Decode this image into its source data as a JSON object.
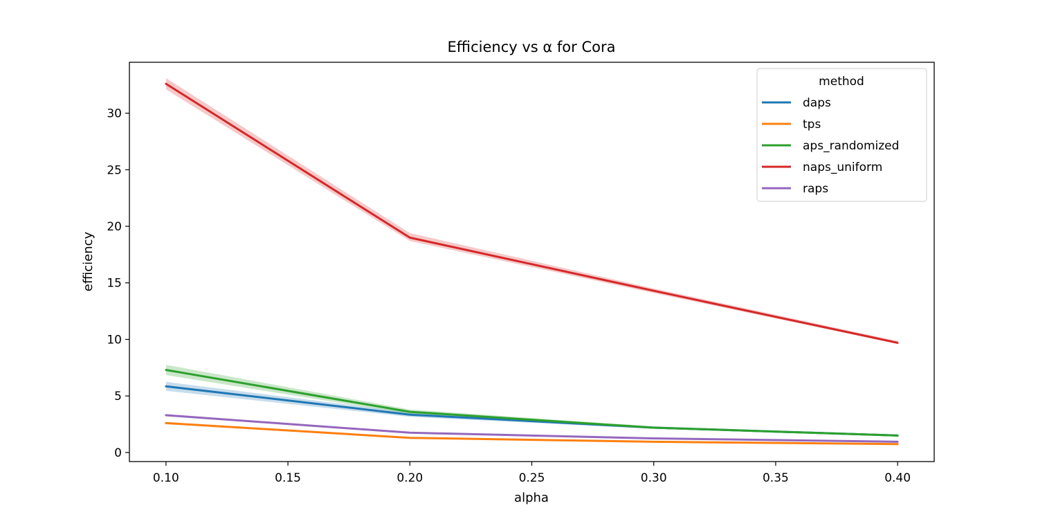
{
  "chart_data": {
    "type": "line",
    "title": "Efficiency vs α for Cora",
    "xlabel": "alpha",
    "ylabel": "efficiency",
    "x": [
      0.1,
      0.2,
      0.3,
      0.4
    ],
    "xlim": [
      0.085,
      0.415
    ],
    "ylim": [
      -0.8,
      34.5
    ],
    "xticks": [
      0.1,
      0.15,
      0.2,
      0.25,
      0.3,
      0.35,
      0.4
    ],
    "xtick_labels": [
      "0.10",
      "0.15",
      "0.20",
      "0.25",
      "0.30",
      "0.35",
      "0.40"
    ],
    "yticks": [
      0,
      5,
      10,
      15,
      20,
      25,
      30
    ],
    "ytick_labels": [
      "0",
      "5",
      "10",
      "15",
      "20",
      "25",
      "30"
    ],
    "grid": false,
    "legend": {
      "title": "method",
      "position": "top-right"
    },
    "series": [
      {
        "name": "daps",
        "color": "#1f77b4",
        "values": [
          5.85,
          3.35,
          2.2,
          1.5
        ],
        "lower": [
          5.45,
          3.15,
          2.1,
          1.45
        ],
        "upper": [
          6.25,
          3.55,
          2.3,
          1.6
        ]
      },
      {
        "name": "tps",
        "color": "#ff7f0e",
        "values": [
          2.6,
          1.3,
          0.95,
          0.75
        ],
        "lower": [
          2.5,
          1.22,
          0.9,
          0.7
        ],
        "upper": [
          2.7,
          1.38,
          1.0,
          0.8
        ]
      },
      {
        "name": "aps_randomized",
        "color": "#2ca02c",
        "values": [
          7.3,
          3.6,
          2.2,
          1.5
        ],
        "lower": [
          6.85,
          3.4,
          2.1,
          1.42
        ],
        "upper": [
          7.75,
          3.8,
          2.3,
          1.6
        ]
      },
      {
        "name": "naps_uniform",
        "color": "#d62728",
        "values": [
          32.6,
          19.0,
          14.3,
          9.7
        ],
        "lower": [
          32.1,
          18.7,
          14.1,
          9.6
        ],
        "upper": [
          33.1,
          19.4,
          14.5,
          9.85
        ]
      },
      {
        "name": "raps",
        "color": "#9467bd",
        "values": [
          3.3,
          1.75,
          1.25,
          0.95
        ],
        "lower": [
          3.2,
          1.68,
          1.2,
          0.9
        ],
        "upper": [
          3.4,
          1.82,
          1.3,
          1.0
        ]
      }
    ]
  }
}
